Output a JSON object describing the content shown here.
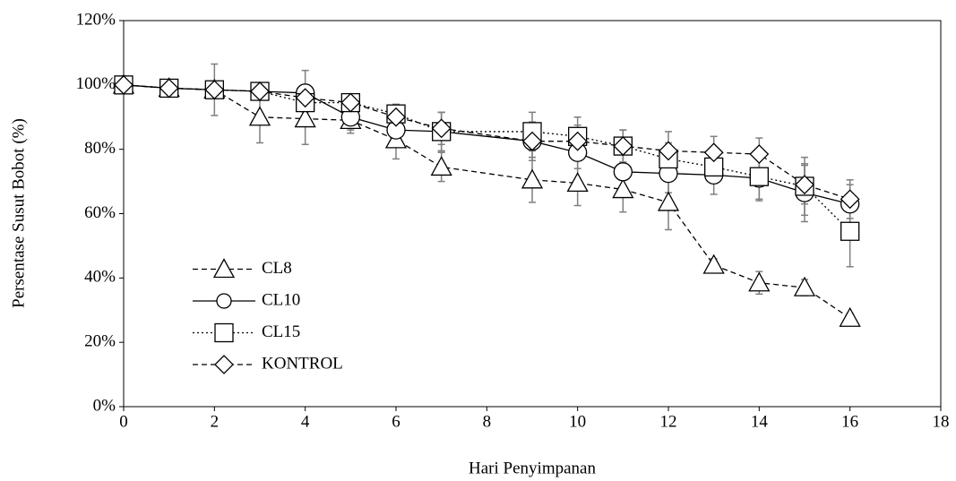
{
  "chart_data": {
    "type": "line",
    "xlabel": "Hari Penyimpanan",
    "ylabel": "Persentase Susut Bobot (%)",
    "x": [
      0,
      1,
      2,
      3,
      4,
      5,
      6,
      7,
      9,
      10,
      11,
      12,
      13,
      14,
      15,
      16
    ],
    "xlim": [
      0,
      18
    ],
    "xticks": [
      0,
      2,
      4,
      6,
      8,
      10,
      12,
      14,
      16,
      18
    ],
    "ylim": [
      0,
      120
    ],
    "yticks": [
      {
        "value": 0,
        "label": "0%"
      },
      {
        "value": 20,
        "label": "20%"
      },
      {
        "value": 40,
        "label": "40%"
      },
      {
        "value": 60,
        "label": "60%"
      },
      {
        "value": 80,
        "label": "80%"
      },
      {
        "value": 100,
        "label": "100%"
      },
      {
        "value": 120,
        "label": "120%"
      }
    ],
    "legend": "left",
    "error_color": "#7f7f7f",
    "series": [
      {
        "name": "CL8",
        "color": "#000000",
        "dash": "dashed",
        "marker": "triangle",
        "values": [
          100,
          99,
          98.5,
          90,
          89.5,
          89,
          83,
          74.5,
          70.5,
          69.5,
          67.5,
          63.5,
          44,
          38.5,
          37,
          27.5
        ],
        "errors": [
          1,
          1,
          1.5,
          8,
          8,
          4,
          6,
          4.5,
          7,
          7,
          7,
          8.5,
          2,
          3.5,
          2.5,
          1.5
        ]
      },
      {
        "name": "CL10",
        "color": "#000000",
        "dash": "solid",
        "marker": "circle",
        "values": [
          100,
          99,
          98.5,
          98,
          97.5,
          90,
          86,
          85.5,
          82.5,
          79,
          73,
          72.5,
          72,
          71,
          66.5,
          63
        ],
        "errors": [
          1,
          1,
          8,
          2,
          7,
          4,
          4,
          6,
          6,
          5,
          6,
          6,
          6,
          7,
          9,
          6
        ]
      },
      {
        "name": "CL15",
        "color": "#000000",
        "dash": "dotted",
        "marker": "square",
        "values": [
          100,
          99,
          98.5,
          98,
          94.5,
          94.5,
          91,
          85.5,
          85.5,
          84,
          81,
          77,
          74.5,
          71.5,
          68.5,
          54.5
        ],
        "errors": [
          1,
          1,
          2,
          2,
          3,
          2,
          3,
          6,
          6,
          6,
          5,
          5,
          5,
          7,
          9,
          11
        ]
      },
      {
        "name": "KONTROL",
        "color": "#000000",
        "dash": "dashed",
        "marker": "diamond",
        "values": [
          100,
          99,
          98.5,
          98,
          96,
          94.5,
          90,
          86.5,
          82.5,
          82.5,
          81,
          79.5,
          79,
          78.5,
          69,
          64.5
        ],
        "errors": [
          1,
          1,
          2,
          2,
          3,
          2,
          3,
          5,
          5,
          5,
          5,
          6,
          5,
          5,
          6,
          6
        ]
      }
    ]
  }
}
